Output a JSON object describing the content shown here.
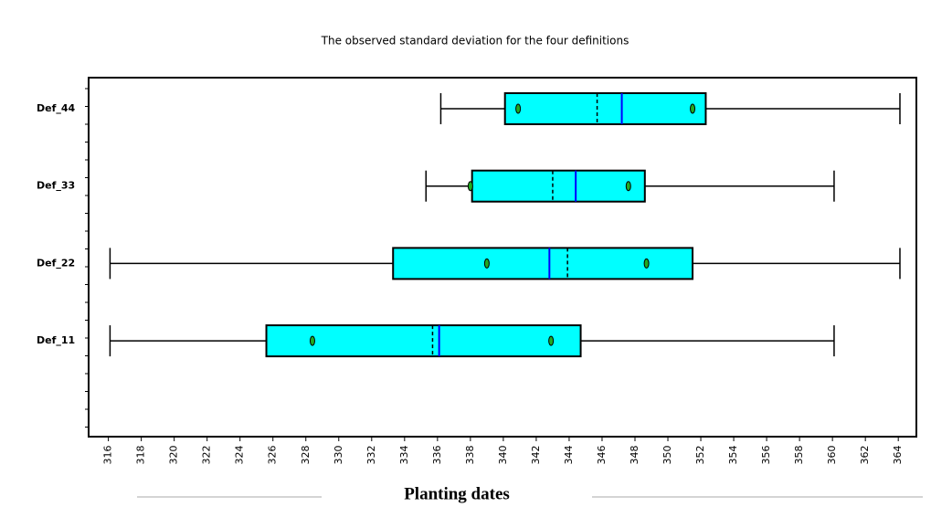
{
  "chart_data": {
    "type": "boxplot",
    "title": "The observed standard deviation for the four definitions",
    "x_label": "Planting dates",
    "xlim": [
      314.8,
      365.1
    ],
    "xticks": [
      316,
      318,
      320,
      322,
      324,
      326,
      328,
      330,
      332,
      334,
      336,
      338,
      340,
      342,
      344,
      346,
      348,
      350,
      352,
      354,
      356,
      358,
      360,
      362,
      364
    ],
    "box_color": "#00ffff",
    "median_color": "#0000ff",
    "mean_color": "#000000",
    "marker_color": "#22aa22",
    "boxes": [
      {
        "label": "Def_44",
        "whislo": 336.2,
        "q1": 340.1,
        "median": 347.2,
        "mean": 345.7,
        "q3": 352.3,
        "whishi": 364.1,
        "markers": [
          340.9,
          351.5
        ]
      },
      {
        "label": "Def_33",
        "whislo": 335.3,
        "q1": 338.1,
        "median": 344.4,
        "mean": 343.0,
        "q3": 348.6,
        "whishi": 360.1,
        "markers": [
          338.0,
          347.6
        ]
      },
      {
        "label": "Def_22",
        "whislo": 316.1,
        "q1": 333.3,
        "median": 342.8,
        "mean": 343.9,
        "q3": 351.5,
        "whishi": 364.1,
        "markers": [
          339.0,
          348.7
        ]
      },
      {
        "label": "Def_11",
        "whislo": 316.1,
        "q1": 325.6,
        "median": 336.1,
        "mean": 335.7,
        "q3": 344.7,
        "whishi": 360.1,
        "markers": [
          328.4,
          342.9
        ]
      }
    ]
  }
}
